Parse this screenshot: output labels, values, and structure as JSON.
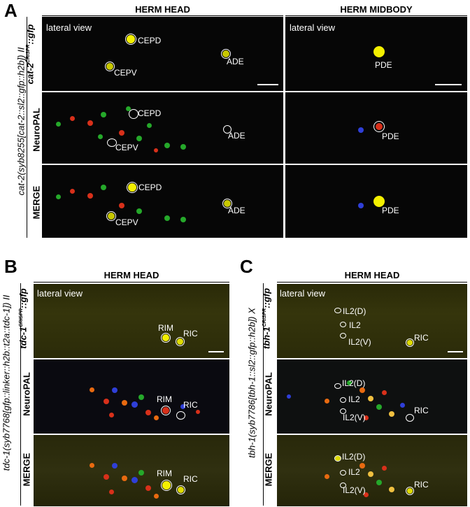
{
  "panelA": {
    "letter": "A",
    "col1_title": "HERM HEAD",
    "col2_title": "HERM MIDBODY",
    "genotype": "cat-2(syb8255[cat-2::sl2::gfp::h2b]) II",
    "row_labels": {
      "gfp": "cat-2",
      "gfp_sup": "CRISPR",
      "gfp_suffix": "::gfp",
      "neuropal": "NeuroPAL",
      "merge": "MERGE"
    },
    "lateral_view": "lateral view",
    "head_cells": [
      "CEPD",
      "CEPV",
      "ADE"
    ],
    "midbody_cells": [
      "PDE"
    ]
  },
  "panelB": {
    "letter": "B",
    "title": "HERM HEAD",
    "genotype": "tdc-1(syb7768[gfp::linker::h2b::t2a::tdc-1]) II",
    "row_labels": {
      "gfp": "tdc-1",
      "gfp_sup": "CRISPR",
      "gfp_suffix": "::gfp",
      "neuropal": "NeuroPAL",
      "merge": "MERGE"
    },
    "lateral_view": "lateral view",
    "cells": [
      "RIM",
      "RIC"
    ]
  },
  "panelC": {
    "letter": "C",
    "title": "HERM HEAD",
    "genotype": "tbh-1(syb7786[tbh-1::sl2::gfp::h2b]) X",
    "row_labels": {
      "gfp": "tbh-1",
      "gfp_sup": "CRISPR",
      "gfp_suffix": "::gfp",
      "neuropal": "NeuroPAL",
      "merge": "MERGE"
    },
    "lateral_view": "lateral view",
    "cells": [
      "IL2(D)",
      "IL2",
      "IL2(V)",
      "RIC"
    ]
  },
  "colors": {
    "gfp": "#f4f000",
    "red": "#d8301a",
    "green": "#25a82a",
    "blue": "#2f3fd8",
    "orange": "#e86a10"
  }
}
